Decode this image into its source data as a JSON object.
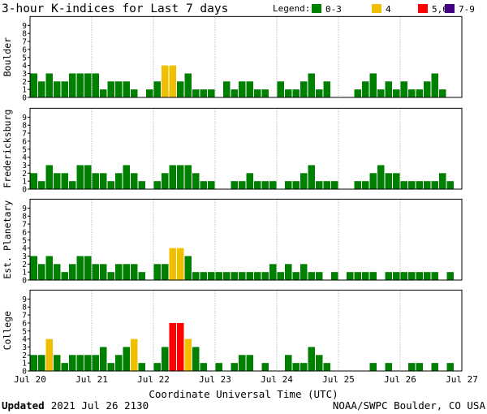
{
  "title": "3-hour K-indices for Last 7 days",
  "legend": {
    "label": "Legend:",
    "items": [
      {
        "label": "0-3",
        "color": "#008000"
      },
      {
        "label": "4",
        "color": "#f0c000"
      },
      {
        "label": "5,6",
        "color": "#ff0000"
      },
      {
        "label": "7-9",
        "color": "#400080"
      }
    ]
  },
  "footer": {
    "updated_label": "Updated",
    "updated_value": "2021 Jul 26 2130",
    "credit": "NOAA/SWPC Boulder, CO USA"
  },
  "chart_data": {
    "type": "bar",
    "xlabel": "Coordinate Universal Time (UTC)",
    "x_tick_labels": [
      "Jul 20",
      "Jul 21",
      "Jul 22",
      "Jul 23",
      "Jul 24",
      "Jul 25",
      "Jul 26",
      "Jul 27"
    ],
    "ylim": [
      0,
      9
    ],
    "y_tick_labels": [
      "0",
      "1",
      "2",
      "3",
      "4",
      "5",
      "6",
      "7",
      "8",
      "9"
    ],
    "intervals_per_day": 8,
    "grid": true,
    "series": [
      {
        "name": "Boulder",
        "values": [
          3,
          2,
          3,
          2,
          2,
          3,
          3,
          3,
          3,
          1,
          2,
          2,
          2,
          1,
          0,
          1,
          2,
          4,
          4,
          2,
          3,
          1,
          1,
          1,
          0,
          2,
          1,
          2,
          2,
          1,
          1,
          0,
          2,
          1,
          1,
          2,
          3,
          1,
          2,
          0,
          0,
          0,
          1,
          2,
          3,
          1,
          2,
          1,
          2,
          1,
          1,
          2,
          3,
          1,
          0,
          0
        ]
      },
      {
        "name": "Fredericksburg",
        "values": [
          2,
          1,
          3,
          2,
          2,
          1,
          3,
          3,
          2,
          2,
          1,
          2,
          3,
          2,
          1,
          0,
          1,
          2,
          3,
          3,
          3,
          2,
          1,
          1,
          0,
          0,
          1,
          1,
          2,
          1,
          1,
          1,
          0,
          1,
          1,
          2,
          3,
          1,
          1,
          1,
          0,
          0,
          1,
          1,
          2,
          3,
          2,
          2,
          1,
          1,
          1,
          1,
          1,
          2,
          1,
          0
        ]
      },
      {
        "name": "Est. Planetary",
        "values": [
          3,
          2,
          3,
          2,
          1,
          2,
          3,
          3,
          2,
          2,
          1,
          2,
          2,
          2,
          1,
          0,
          2,
          2,
          4,
          4,
          3,
          1,
          1,
          1,
          1,
          1,
          1,
          1,
          1,
          1,
          1,
          2,
          1,
          2,
          1,
          2,
          1,
          1,
          0,
          1,
          0,
          1,
          1,
          1,
          1,
          0,
          1,
          1,
          1,
          1,
          1,
          1,
          1,
          0,
          1,
          0
        ]
      },
      {
        "name": "College",
        "values": [
          2,
          2,
          4,
          2,
          1,
          2,
          2,
          2,
          2,
          3,
          1,
          2,
          3,
          4,
          1,
          0,
          1,
          3,
          6,
          6,
          4,
          3,
          1,
          0,
          1,
          0,
          1,
          2,
          2,
          0,
          1,
          0,
          0,
          2,
          1,
          1,
          3,
          2,
          1,
          0,
          0,
          0,
          0,
          0,
          1,
          0,
          1,
          0,
          0,
          1,
          1,
          0,
          1,
          0,
          1,
          0
        ]
      }
    ]
  }
}
